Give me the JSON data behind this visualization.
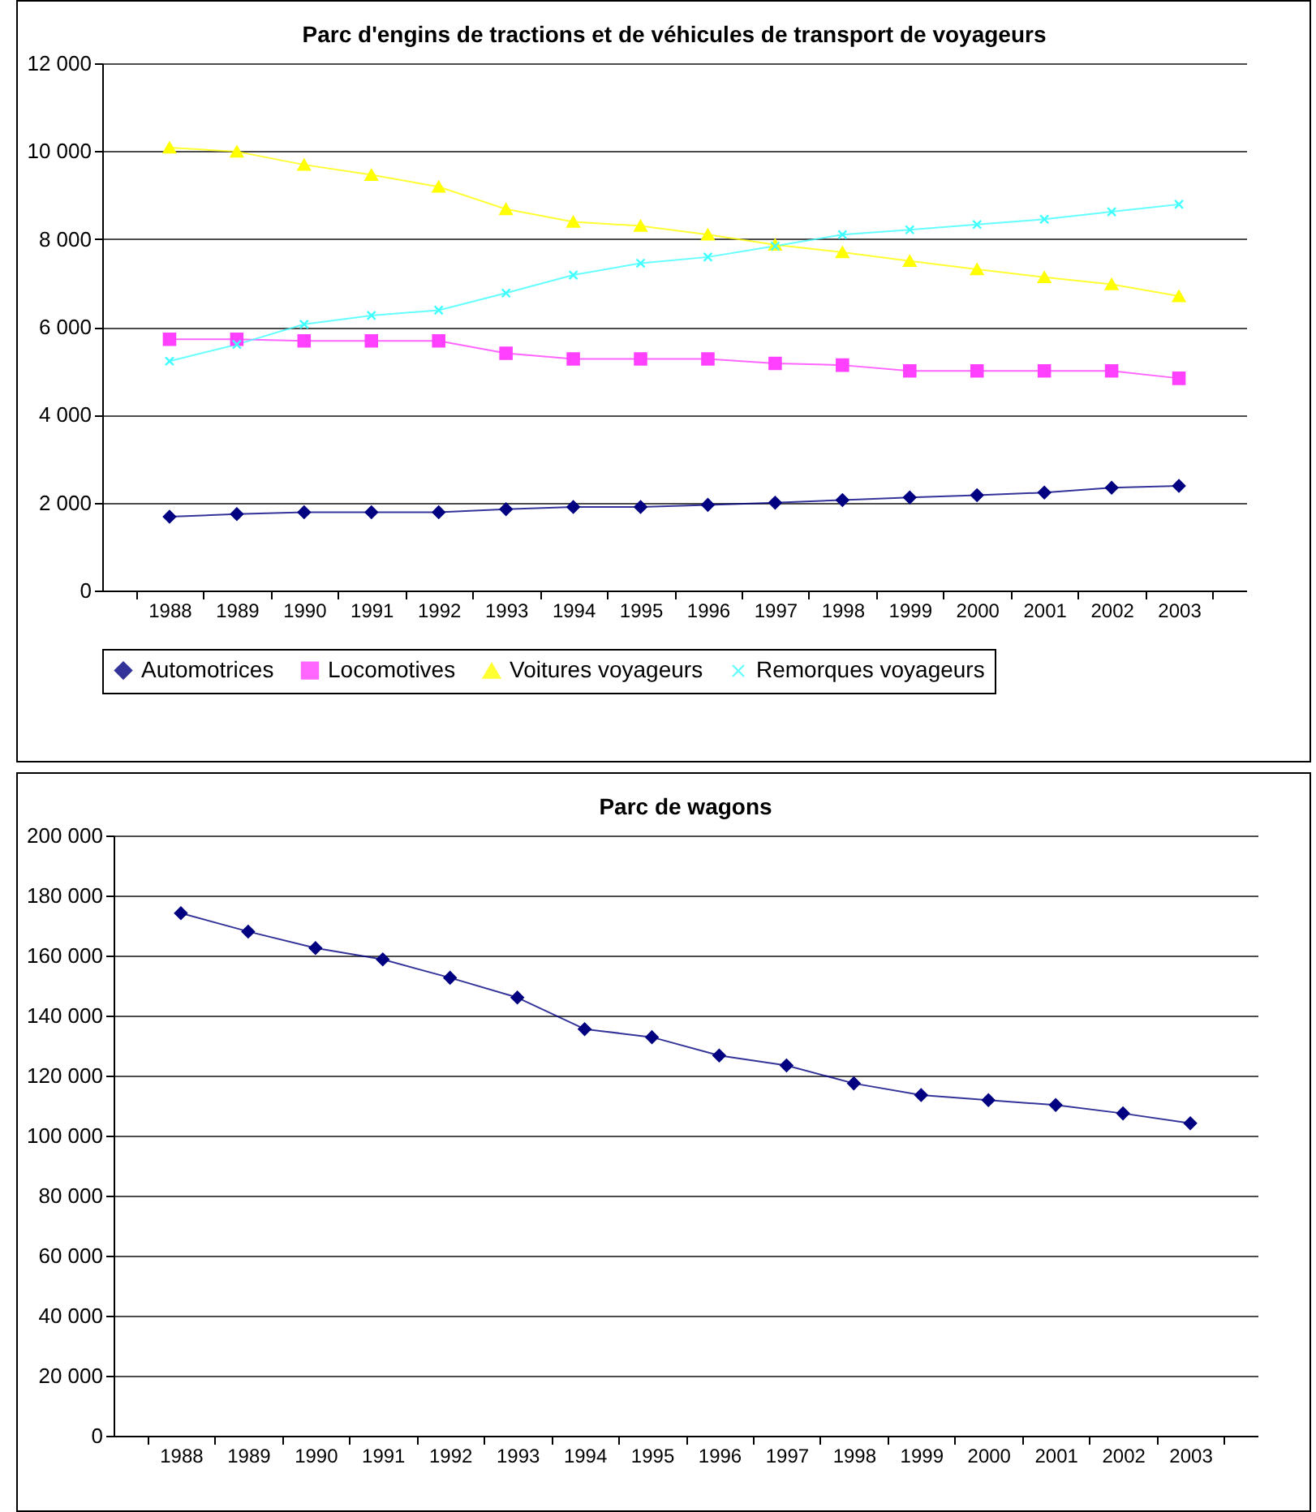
{
  "chart_data": [
    {
      "type": "line",
      "title": "Parc d'engins de tractions et de véhicules de transport de voyageurs",
      "categories": [
        "1988",
        "1989",
        "1990",
        "1991",
        "1992",
        "1993",
        "1994",
        "1995",
        "1996",
        "1997",
        "1998",
        "1999",
        "2000",
        "2001",
        "2002",
        "2003"
      ],
      "series": [
        {
          "name": "Automotrices",
          "color": "#000080",
          "marker": "diamond",
          "values": [
            1680,
            1740,
            1780,
            1780,
            1780,
            1850,
            1900,
            1900,
            1950,
            2000,
            2060,
            2120,
            2170,
            2230,
            2340,
            2380
          ]
        },
        {
          "name": "Locomotives",
          "color": "#ff40ff",
          "marker": "square",
          "values": [
            5720,
            5720,
            5680,
            5680,
            5680,
            5400,
            5270,
            5270,
            5270,
            5170,
            5130,
            5000,
            5000,
            5000,
            5000,
            4830
          ]
        },
        {
          "name": "Voitures voyageurs",
          "color": "#ffff00",
          "marker": "triangle",
          "values": [
            10080,
            9990,
            9690,
            9460,
            9190,
            8680,
            8390,
            8300,
            8100,
            7870,
            7700,
            7500,
            7310,
            7130,
            6970,
            6700
          ]
        },
        {
          "name": "Remorques voyageurs",
          "color": "#40ffff",
          "marker": "cross",
          "values": [
            5220,
            5600,
            6060,
            6260,
            6380,
            6770,
            7180,
            7450,
            7590,
            7840,
            8100,
            8210,
            8330,
            8450,
            8620,
            8790
          ]
        }
      ],
      "ylim": [
        0,
        12000
      ],
      "yticks": [
        {
          "value": 0,
          "label": "0"
        },
        {
          "value": 2000,
          "label": "2 000"
        },
        {
          "value": 4000,
          "label": "4 000"
        },
        {
          "value": 6000,
          "label": "6 000"
        },
        {
          "value": 8000,
          "label": "8 000"
        },
        {
          "value": 10000,
          "label": "10 000"
        },
        {
          "value": 12000,
          "label": "12 000"
        }
      ],
      "grid": "y",
      "legend": "bottom"
    },
    {
      "type": "line",
      "title": "Parc de wagons",
      "categories": [
        "1988",
        "1989",
        "1990",
        "1991",
        "1992",
        "1993",
        "1994",
        "1995",
        "1996",
        "1997",
        "1998",
        "1999",
        "2000",
        "2001",
        "2002",
        "2003"
      ],
      "series": [
        {
          "color": "#000080",
          "marker": "diamond",
          "values": [
            174100,
            168000,
            162500,
            158700,
            152600,
            146000,
            135500,
            132800,
            126700,
            123400,
            117400,
            113500,
            111800,
            110200,
            107400,
            104100
          ]
        }
      ],
      "ylim": [
        0,
        200000
      ],
      "yticks": [
        {
          "value": 0,
          "label": "0"
        },
        {
          "value": 20000,
          "label": "20 000"
        },
        {
          "value": 40000,
          "label": "40 000"
        },
        {
          "value": 60000,
          "label": "60 000"
        },
        {
          "value": 80000,
          "label": "80 000"
        },
        {
          "value": 100000,
          "label": "100 000"
        },
        {
          "value": 120000,
          "label": "120 000"
        },
        {
          "value": 140000,
          "label": "140 000"
        },
        {
          "value": 160000,
          "label": "160 000"
        },
        {
          "value": 180000,
          "label": "180 000"
        },
        {
          "value": 200000,
          "label": "200 000"
        }
      ],
      "grid": "y",
      "legend": false
    }
  ]
}
